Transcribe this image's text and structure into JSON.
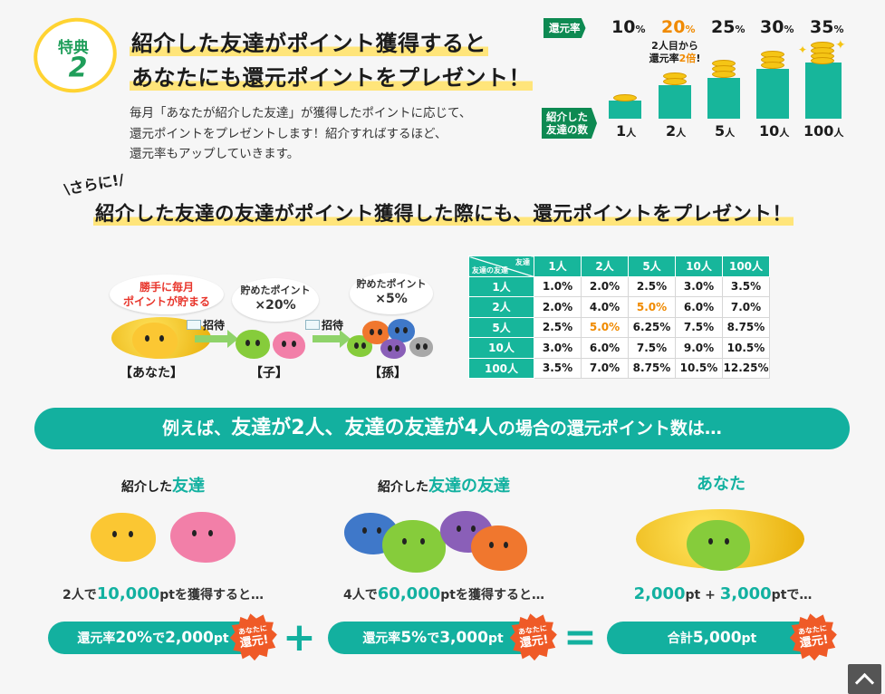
{
  "badge": {
    "label": "特典",
    "number": "2"
  },
  "headline": {
    "line1": "紹介した友達がポイント獲得すると",
    "line2": "あなたにも還元ポイントをプレゼント！"
  },
  "description": {
    "line1": "毎月「あなたが紹介した友達」が獲得したポイントに応じて、",
    "line2": "還元ポイントをプレゼントします！紹介すればするほど、",
    "line3": "還元率もアップしていきます。"
  },
  "rate_chart": {
    "rate_label": "還元率",
    "count_label_1": "紹介した",
    "count_label_2": "友達の数",
    "percent_suffix": "%",
    "person_suffix": "人",
    "callout_1": "2人目から",
    "callout_2a": "還元率",
    "callout_2b": "2倍",
    "callout_2c": "!",
    "rates": [
      "10",
      "20",
      "25",
      "30",
      "35"
    ],
    "counts": [
      "1",
      "2",
      "5",
      "10",
      "100"
    ]
  },
  "sarani": {
    "tag": "\\さらに!/",
    "headline": "紹介した友達の友達がポイント獲得した際にも、還元ポイントをプレゼント！"
  },
  "flow": {
    "bubble_you_1": "勝手に毎月",
    "bubble_you_2": "ポイントが貯まる",
    "bubble_child_1": "貯めたポイント",
    "bubble_child_2": "×20%",
    "bubble_grand_1": "貯めたポイント",
    "bubble_grand_2": "×5%",
    "invite_1": "招待",
    "invite_2": "招待",
    "role_you": "【あなた】",
    "role_child": "【子】",
    "role_grand": "【孫】"
  },
  "table": {
    "corner_top": "友達",
    "corner_bottom": "友達の友達",
    "col_headers": [
      "1人",
      "2人",
      "5人",
      "10人",
      "100人"
    ],
    "rows": [
      {
        "label": "1人",
        "cells": [
          "1.0%",
          "2.0%",
          "2.5%",
          "3.0%",
          "3.5%"
        ]
      },
      {
        "label": "2人",
        "cells": [
          "2.0%",
          "4.0%",
          "5.0%",
          "6.0%",
          "7.0%"
        ]
      },
      {
        "label": "5人",
        "cells": [
          "2.5%",
          "5.0%",
          "6.25%",
          "7.5%",
          "8.75%"
        ]
      },
      {
        "label": "10人",
        "cells": [
          "3.0%",
          "6.0%",
          "7.5%",
          "9.0%",
          "10.5%"
        ]
      },
      {
        "label": "100人",
        "cells": [
          "3.5%",
          "7.0%",
          "8.75%",
          "10.5%",
          "12.25%"
        ]
      }
    ]
  },
  "example": {
    "bar_a": "例えば、",
    "bar_b": "友達が2人、友達の友達が4人",
    "bar_c": "の場合の還元ポイント数は…",
    "col1": {
      "title_pre": "紹介した",
      "title_em": "友達",
      "sum_pre": "2人で",
      "sum_num": "10,000",
      "sum_post": "ptを獲得すると…",
      "pill_a": "還元率",
      "pill_b": "20%",
      "pill_c": "で",
      "pill_d": "2,000",
      "pill_e": "pt"
    },
    "col2": {
      "title_pre": "紹介した",
      "title_em": "友達の友達",
      "sum_pre": "4人で",
      "sum_num": "60,000",
      "sum_post": "ptを獲得すると…",
      "pill_a": "還元率",
      "pill_b": "5%",
      "pill_c": "で",
      "pill_d": "3,000",
      "pill_e": "pt"
    },
    "col3": {
      "title": "あなた",
      "sum_a": "2,000",
      "sum_b": "pt + ",
      "sum_c": "3,000",
      "sum_d": "ptで…",
      "pill_a": "合計",
      "pill_b": "5,000",
      "pill_c": "pt"
    },
    "burst_small": "あなたに",
    "burst_large": "還元!",
    "plus": "+",
    "equals": "="
  },
  "colors": {
    "teal": "#13b09f",
    "green": "#0d8a52",
    "orange": "#f08a00",
    "yellow": "#ffe57a"
  }
}
